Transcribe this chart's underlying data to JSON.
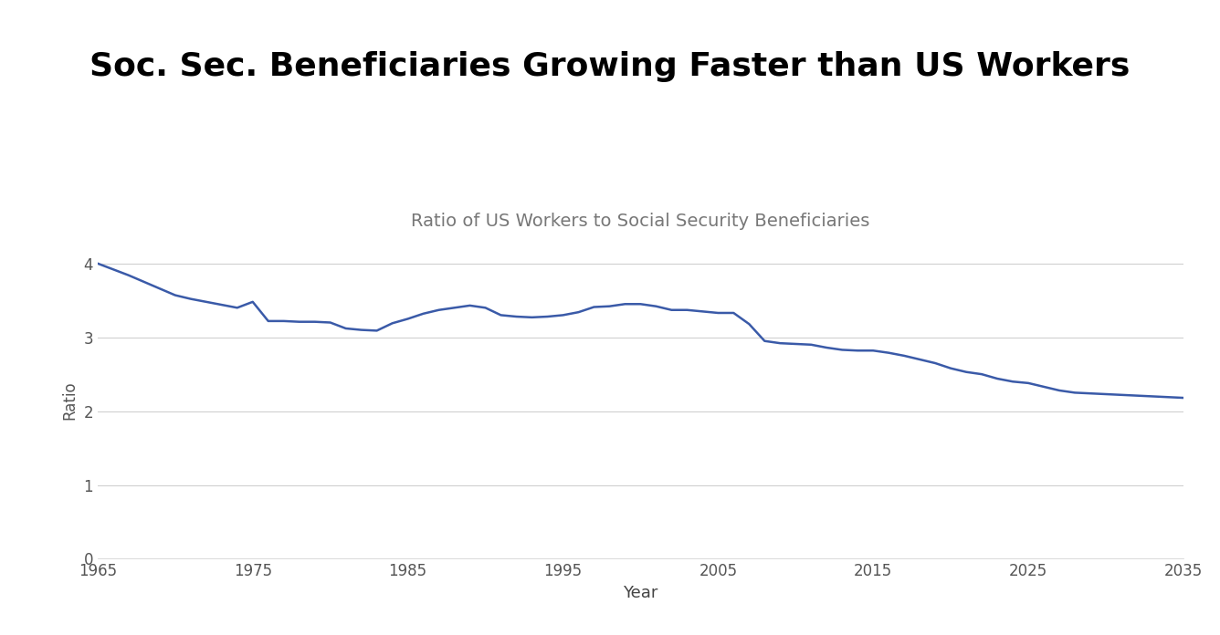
{
  "title": "Soc. Sec. Beneficiaries Growing Faster than US Workers",
  "subtitle": "Ratio of US Workers to Social Security Beneficiaries",
  "xlabel": "Year",
  "ylabel": "Ratio",
  "line_color": "#3a5aa8",
  "background_color": "#ffffff",
  "grid_color": "#d0d0d0",
  "years": [
    1965,
    1966,
    1967,
    1968,
    1969,
    1970,
    1971,
    1972,
    1973,
    1974,
    1975,
    1976,
    1977,
    1978,
    1979,
    1980,
    1981,
    1982,
    1983,
    1984,
    1985,
    1986,
    1987,
    1988,
    1989,
    1990,
    1991,
    1992,
    1993,
    1994,
    1995,
    1996,
    1997,
    1998,
    1999,
    2000,
    2001,
    2002,
    2003,
    2004,
    2005,
    2006,
    2007,
    2008,
    2009,
    2010,
    2011,
    2012,
    2013,
    2014,
    2015,
    2016,
    2017,
    2018,
    2019,
    2020,
    2021,
    2022,
    2023,
    2024,
    2025,
    2026,
    2027,
    2028,
    2029,
    2030,
    2031,
    2032,
    2033,
    2034,
    2035
  ],
  "values": [
    4.0,
    3.92,
    3.84,
    3.75,
    3.66,
    3.57,
    3.52,
    3.48,
    3.44,
    3.4,
    3.48,
    3.22,
    3.22,
    3.21,
    3.21,
    3.2,
    3.12,
    3.1,
    3.09,
    3.19,
    3.25,
    3.32,
    3.37,
    3.4,
    3.43,
    3.4,
    3.3,
    3.28,
    3.27,
    3.28,
    3.3,
    3.34,
    3.41,
    3.42,
    3.45,
    3.45,
    3.42,
    3.37,
    3.37,
    3.35,
    3.33,
    3.33,
    3.18,
    2.95,
    2.92,
    2.91,
    2.9,
    2.86,
    2.83,
    2.82,
    2.82,
    2.79,
    2.75,
    2.7,
    2.65,
    2.58,
    2.53,
    2.5,
    2.44,
    2.4,
    2.38,
    2.33,
    2.28,
    2.25,
    2.24,
    2.23,
    2.22,
    2.21,
    2.2,
    2.19,
    2.18
  ],
  "xlim": [
    1965,
    2035
  ],
  "ylim": [
    0,
    4.3
  ],
  "xticks": [
    1965,
    1975,
    1985,
    1995,
    2005,
    2015,
    2025,
    2035
  ],
  "yticks": [
    0,
    1,
    2,
    3,
    4
  ],
  "title_fontsize": 26,
  "subtitle_fontsize": 14,
  "xlabel_fontsize": 13,
  "ylabel_fontsize": 12,
  "tick_fontsize": 12,
  "line_width": 1.8
}
